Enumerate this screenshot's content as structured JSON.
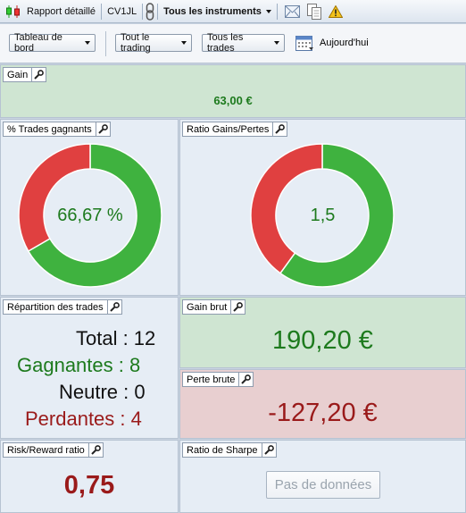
{
  "toolbar": {
    "report_label": "Rapport détaillé",
    "account": "CV1JL",
    "instruments": "Tous les instruments"
  },
  "filters": {
    "dashboard": "Tableau de bord",
    "trading": "Tout le trading",
    "trades": "Tous les trades",
    "date": "Aujourd'hui"
  },
  "panels": {
    "gain": {
      "title": "Gain",
      "value": "63,00 €"
    },
    "win_pct": {
      "title": "% Trades gagnants",
      "value": "66,67 %",
      "fraction": 0.6667
    },
    "ratio": {
      "title": "Ratio Gains/Pertes",
      "value": "1,5",
      "fraction": 0.6
    },
    "distribution": {
      "title": "Répartition des trades",
      "total": "Total : 12",
      "winners": "Gagnantes : 8",
      "neutral": "Neutre : 0",
      "losers": "Perdantes : 4"
    },
    "gross_gain": {
      "title": "Gain brut",
      "value": "190,20 €"
    },
    "gross_loss": {
      "title": "Perte brute",
      "value": "-127,20 €"
    },
    "risk_reward": {
      "title": "Risk/Reward ratio",
      "value": "0,75"
    },
    "sharpe": {
      "title": "Ratio de Sharpe",
      "no_data": "Pas de données"
    }
  },
  "colors": {
    "green": "#3fb23f",
    "red": "#e04040",
    "green_text": "#1d7a1d",
    "red_text": "#9a1a1a"
  },
  "icons": [
    "candlestick-icon",
    "link-icon",
    "dropdown-caret-icon",
    "email-icon",
    "copy-icon",
    "warning-icon",
    "calendar-icon",
    "wrench-icon"
  ]
}
